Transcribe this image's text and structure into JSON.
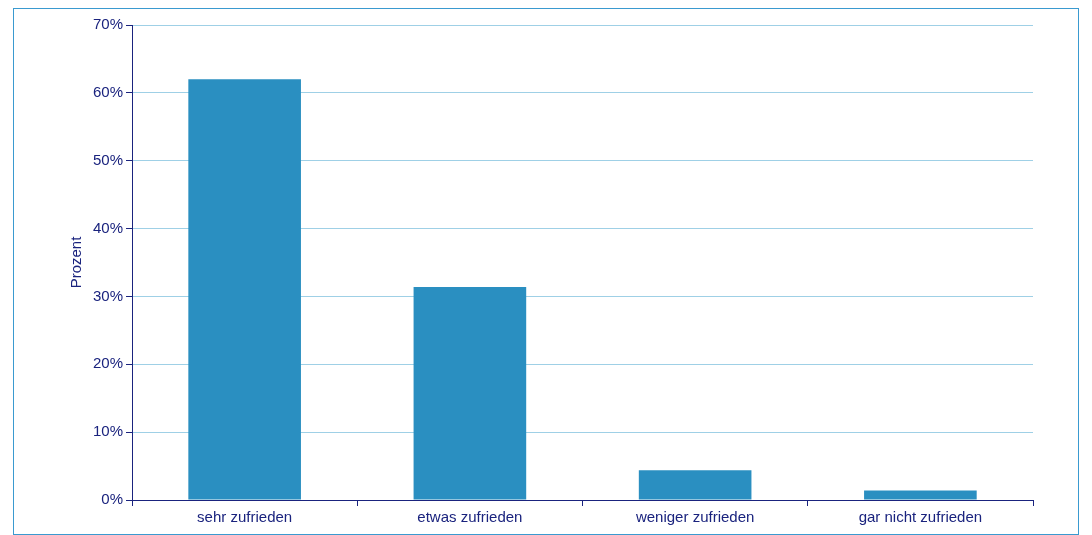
{
  "chart_data": {
    "type": "bar",
    "ylabel": "Prozent",
    "categories": [
      "sehr zufrieden",
      "etwas zufrieden",
      "weniger zufrieden",
      "gar nicht zufrieden"
    ],
    "values": [
      62,
      31.4,
      4.4,
      1.4
    ],
    "color": "#2a8fc1",
    "ylim": [
      0,
      70
    ],
    "yticks": [
      {
        "value": 0,
        "label": "0%"
      },
      {
        "value": 10,
        "label": "10%"
      },
      {
        "value": 20,
        "label": "20%"
      },
      {
        "value": 30,
        "label": "30%"
      },
      {
        "value": 40,
        "label": "40%"
      },
      {
        "value": 50,
        "label": "50%"
      },
      {
        "value": 60,
        "label": "60%"
      },
      {
        "value": 70,
        "label": "70%"
      }
    ],
    "grid": "y",
    "legend": false
  }
}
